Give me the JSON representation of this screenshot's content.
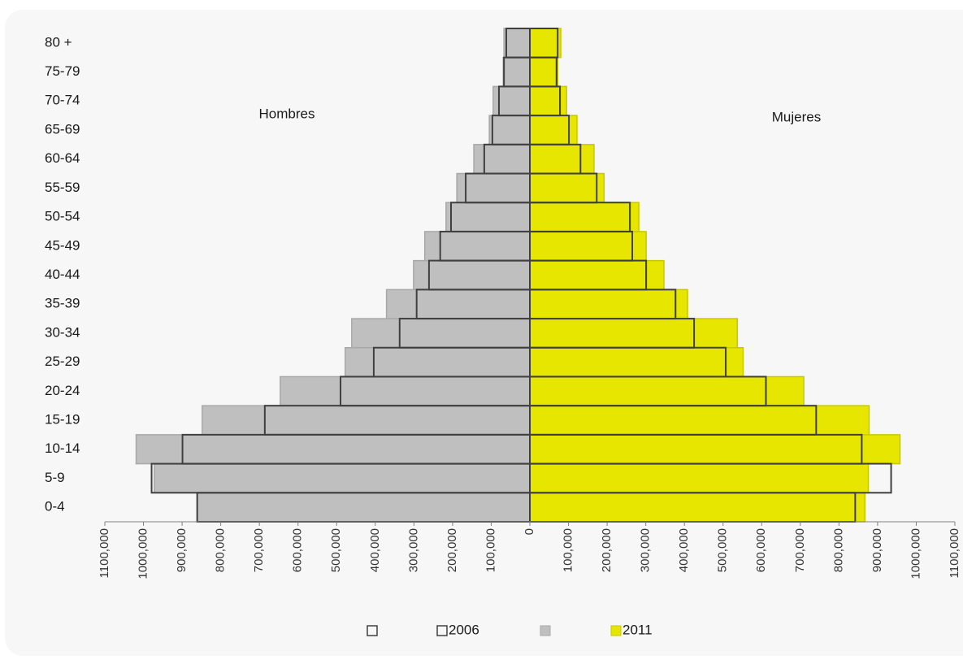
{
  "chart_data": {
    "type": "pyramid",
    "annotations": [
      "Hombres",
      "Mujeres"
    ],
    "categories": [
      "0-4",
      "5-9",
      "10-14",
      "15-19",
      "20-24",
      "25-29",
      "30-34",
      "35-39",
      "40-44",
      "45-49",
      "50-54",
      "55-59",
      "60-64",
      "65-69",
      "70-74",
      "75-79",
      "80 +"
    ],
    "series": [
      {
        "style": "outline",
        "color": "#404040",
        "values": [
          -861000,
          -979000,
          -899000,
          -686000,
          -490000,
          -404000,
          -337000,
          -293000,
          -261000,
          -232000,
          -204000,
          -166000,
          -118000,
          -97000,
          -80000,
          -67000,
          -61000
        ]
      },
      {
        "name": "2006",
        "style": "outline",
        "color": "#404040",
        "values": [
          842000,
          935000,
          859000,
          741000,
          611000,
          507000,
          425000,
          377000,
          301000,
          265000,
          259000,
          173000,
          131000,
          101000,
          78000,
          69000,
          72000
        ]
      },
      {
        "style": "fill",
        "color": "#bfbfbf",
        "values": [
          -860000,
          -972000,
          -1019000,
          -848000,
          -646000,
          -478000,
          -461000,
          -371000,
          -301000,
          -272000,
          -217000,
          -189000,
          -145000,
          -105000,
          -95000,
          -69000,
          -67000
        ]
      },
      {
        "name": "2011",
        "style": "fill",
        "color": "#e6e600",
        "values": [
          867000,
          876000,
          958000,
          878000,
          709000,
          552000,
          537000,
          408000,
          347000,
          301000,
          282000,
          192000,
          166000,
          122000,
          95000,
          72000,
          80000
        ]
      }
    ],
    "xlim": [
      -1100000,
      1100000
    ],
    "xticks": [
      {
        "value": -1100000,
        "label": "1100,000"
      },
      {
        "value": -1000000,
        "label": "1000,000"
      },
      {
        "value": -900000,
        "label": "900,000"
      },
      {
        "value": -800000,
        "label": "800,000"
      },
      {
        "value": -700000,
        "label": "700,000"
      },
      {
        "value": -600000,
        "label": "600,000"
      },
      {
        "value": -500000,
        "label": "500,000"
      },
      {
        "value": -400000,
        "label": "400,000"
      },
      {
        "value": -300000,
        "label": "300,000"
      },
      {
        "value": -200000,
        "label": "200,000"
      },
      {
        "value": -100000,
        "label": "100,000"
      },
      0,
      {
        "value": 100000,
        "label": "100,000"
      },
      {
        "value": 200000,
        "label": "200,000"
      },
      {
        "value": 300000,
        "label": "300,000"
      },
      {
        "value": 400000,
        "label": "400,000"
      },
      {
        "value": 500000,
        "label": "500,000"
      },
      {
        "value": 600000,
        "label": "600,000"
      },
      {
        "value": 700000,
        "label": "700,000"
      },
      {
        "value": 800000,
        "label": "800,000"
      },
      {
        "value": 900000,
        "label": "900,000"
      },
      {
        "value": 1000000,
        "label": "1000,000"
      },
      {
        "value": 1100000,
        "label": "1100,000"
      }
    ]
  }
}
